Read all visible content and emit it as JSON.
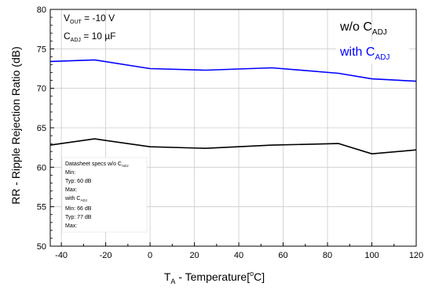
{
  "chart_data": {
    "type": "line",
    "title": "",
    "xlabel": {
      "main": "T",
      "sub": "A",
      "rest": " - Temperature[",
      "sup": "o",
      "end": "C]"
    },
    "ylabel": "RR - Ripple Rejection Ratio (dB)",
    "xlim": [
      -45,
      120
    ],
    "ylim": [
      50,
      80
    ],
    "xticks": [
      -40,
      -20,
      0,
      20,
      40,
      60,
      80,
      100,
      120
    ],
    "yticks": [
      50,
      55,
      60,
      65,
      70,
      75,
      80
    ],
    "grid": true,
    "series": [
      {
        "name": "w/o C_ADJ",
        "color": "#000000",
        "x": [
          -45,
          -25,
          0,
          25,
          55,
          85,
          100,
          120
        ],
        "y": [
          62.8,
          63.6,
          62.6,
          62.4,
          62.8,
          63.0,
          61.7,
          62.2
        ]
      },
      {
        "name": "with C_ADJ",
        "color": "#0000ff",
        "x": [
          -45,
          -25,
          0,
          25,
          55,
          85,
          100,
          120
        ],
        "y": [
          73.4,
          73.6,
          72.5,
          72.3,
          72.6,
          71.9,
          71.2,
          70.9
        ]
      }
    ]
  },
  "conditions": {
    "vout": {
      "main": "V",
      "sub": "OUT",
      "rest": " = -10 V"
    },
    "cadj": {
      "main": "C",
      "sub": "ADJ",
      "rest": " = 10 µF"
    }
  },
  "legend": {
    "black": {
      "main": "w/o C",
      "sub": "ADJ"
    },
    "blue": {
      "main": "with C",
      "sub": "ADJ"
    }
  },
  "spec_box": {
    "header": {
      "main": "Datasheet specs w/o C",
      "sub": "ADJ"
    },
    "lines": [
      "Min:",
      "Typ: 60 dB",
      "Max:"
    ],
    "with": {
      "main": "with C",
      "sub": "ADJ"
    },
    "lines2": [
      "Min: 66 dB",
      "Typ: 77 dB",
      "Max:"
    ]
  }
}
